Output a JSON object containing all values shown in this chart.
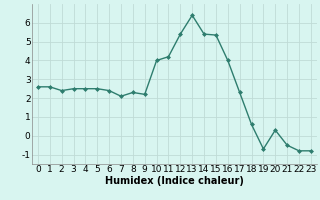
{
  "x": [
    0,
    1,
    2,
    3,
    4,
    5,
    6,
    7,
    8,
    9,
    10,
    11,
    12,
    13,
    14,
    15,
    16,
    17,
    18,
    19,
    20,
    21,
    22,
    23
  ],
  "y": [
    2.6,
    2.6,
    2.4,
    2.5,
    2.5,
    2.5,
    2.4,
    2.1,
    2.3,
    2.2,
    4.0,
    4.2,
    5.4,
    6.4,
    5.4,
    5.35,
    4.0,
    2.3,
    0.6,
    -0.7,
    0.3,
    -0.5,
    -0.8,
    -0.8
  ],
  "line_color": "#2e7d6e",
  "marker": "D",
  "marker_size": 2.0,
  "bg_color": "#d8f5f0",
  "grid_color": "#c0dbd6",
  "xlabel": "Humidex (Indice chaleur)",
  "xlim": [
    -0.5,
    23.5
  ],
  "ylim": [
    -1.5,
    7.0
  ],
  "yticks": [
    -1,
    0,
    1,
    2,
    3,
    4,
    5,
    6
  ],
  "xticks": [
    0,
    1,
    2,
    3,
    4,
    5,
    6,
    7,
    8,
    9,
    10,
    11,
    12,
    13,
    14,
    15,
    16,
    17,
    18,
    19,
    20,
    21,
    22,
    23
  ],
  "xlabel_fontsize": 7,
  "tick_fontsize": 6.5,
  "line_width": 1.0
}
